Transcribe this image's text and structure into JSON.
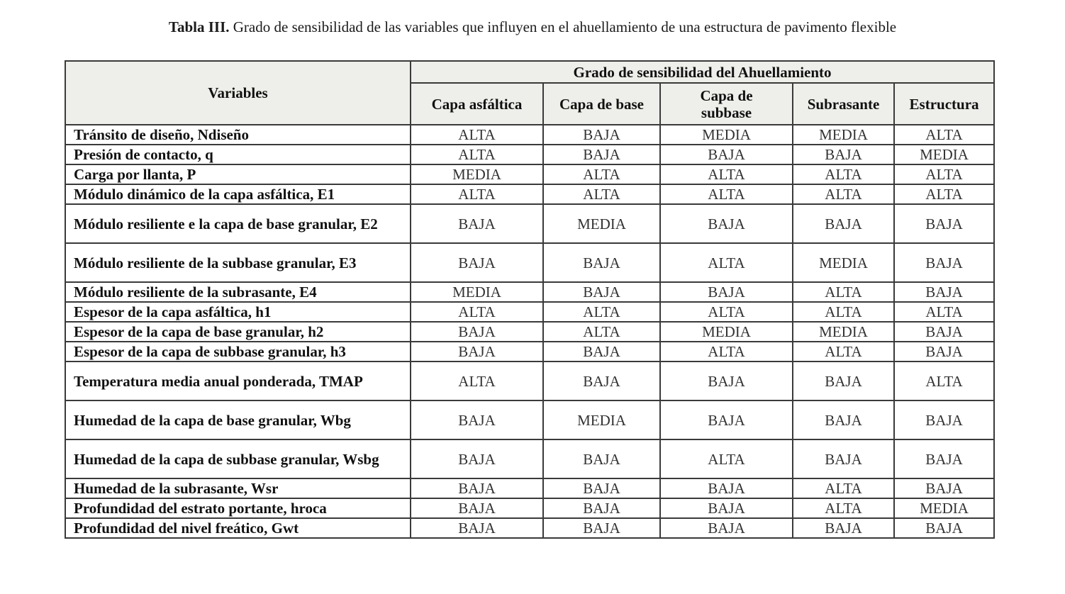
{
  "caption": {
    "label": "Tabla III.",
    "text": "Grado de sensibilidad de las variables que influyen en el ahuellamiento de una estructura de pavimento flexible"
  },
  "table": {
    "variables_header": "Variables",
    "group_header": "Grado de sensibilidad del Ahuellamiento",
    "columns": [
      "Capa asfáltica",
      "Capa de base",
      "Capa de subbase",
      "Subrasante",
      "Estructura"
    ],
    "rows": [
      {
        "variable": "Tránsito de diseño, Ndiseño",
        "values": [
          "ALTA",
          "BAJA",
          "MEDIA",
          "MEDIA",
          "ALTA"
        ]
      },
      {
        "variable": "Presión de contacto, q",
        "values": [
          "ALTA",
          "BAJA",
          "BAJA",
          "BAJA",
          "MEDIA"
        ]
      },
      {
        "variable": "Carga por llanta, P",
        "values": [
          "MEDIA",
          "ALTA",
          "ALTA",
          "ALTA",
          "ALTA"
        ]
      },
      {
        "variable": "Módulo dinámico de la capa asfáltica, E1",
        "values": [
          "ALTA",
          "ALTA",
          "ALTA",
          "ALTA",
          "ALTA"
        ]
      },
      {
        "variable": "Módulo resiliente e la capa de base granular, E2",
        "values": [
          "BAJA",
          "MEDIA",
          "BAJA",
          "BAJA",
          "BAJA"
        ]
      },
      {
        "variable": "Módulo resiliente de la subbase granular, E3",
        "values": [
          "BAJA",
          "BAJA",
          "ALTA",
          "MEDIA",
          "BAJA"
        ]
      },
      {
        "variable": "Módulo resiliente de la subrasante, E4",
        "values": [
          "MEDIA",
          "BAJA",
          "BAJA",
          "ALTA",
          "BAJA"
        ]
      },
      {
        "variable": "Espesor de la capa asfáltica, h1",
        "values": [
          "ALTA",
          "ALTA",
          "ALTA",
          "ALTA",
          "ALTA"
        ]
      },
      {
        "variable": "Espesor de la capa de base granular, h2",
        "values": [
          "BAJA",
          "ALTA",
          "MEDIA",
          "MEDIA",
          "BAJA"
        ]
      },
      {
        "variable": "Espesor de la capa de subbase granular, h3",
        "values": [
          "BAJA",
          "BAJA",
          "ALTA",
          "ALTA",
          "BAJA"
        ]
      },
      {
        "variable": "Temperatura media anual ponderada, TMAP",
        "values": [
          "ALTA",
          "BAJA",
          "BAJA",
          "BAJA",
          "ALTA"
        ]
      },
      {
        "variable": "Humedad de la capa de base granular, Wbg",
        "values": [
          "BAJA",
          "MEDIA",
          "BAJA",
          "BAJA",
          "BAJA"
        ]
      },
      {
        "variable": "Humedad de la capa de subbase granular, Wsbg",
        "values": [
          "BAJA",
          "BAJA",
          "ALTA",
          "BAJA",
          "BAJA"
        ]
      },
      {
        "variable": "Humedad de la subrasante, Wsr",
        "values": [
          "BAJA",
          "BAJA",
          "BAJA",
          "ALTA",
          "BAJA"
        ]
      },
      {
        "variable": "Profundidad del estrato portante, hroca",
        "values": [
          "BAJA",
          "BAJA",
          "BAJA",
          "ALTA",
          "MEDIA"
        ]
      },
      {
        "variable": "Profundidad del nivel freático, Gwt",
        "values": [
          "BAJA",
          "BAJA",
          "BAJA",
          "BAJA",
          "BAJA"
        ]
      }
    ]
  }
}
